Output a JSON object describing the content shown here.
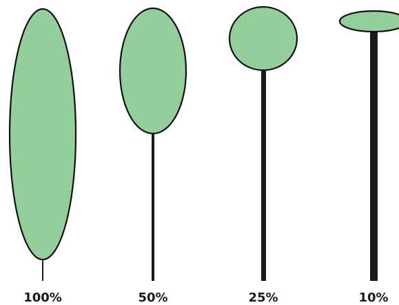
{
  "colors": {
    "bulb_fill": "#93cf9a",
    "stem": "#1a1a1a",
    "outline": "#111111",
    "label": "#1a1a1a"
  },
  "items": [
    {
      "label": "100%",
      "stem_width": 2
    },
    {
      "label": "50%",
      "stem_width": 4
    },
    {
      "label": "25%",
      "stem_width": 7
    },
    {
      "label": "10%",
      "stem_width": 11
    }
  ]
}
